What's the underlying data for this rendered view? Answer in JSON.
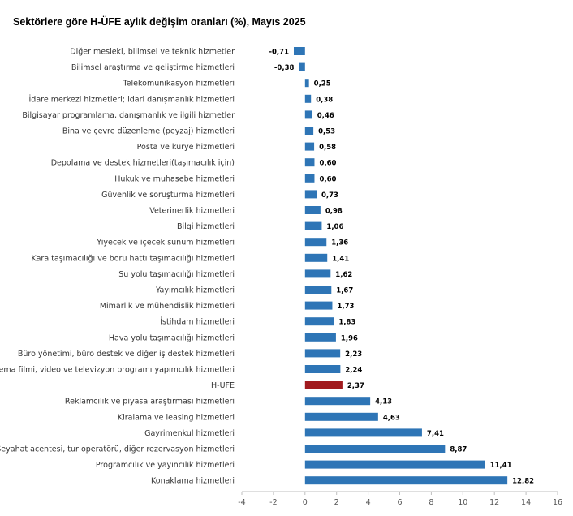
{
  "chart_data": {
    "type": "bar",
    "orientation": "horizontal",
    "title": "Sektörlere göre H-ÜFE aylık değişim oranları (%), Mayıs 2025",
    "categories": [
      "Diğer mesleki, bilimsel ve teknik hizmetler",
      "Bilimsel araştırma ve geliştirme hizmetleri",
      "Telekomünikasyon hizmetleri",
      "İdare merkezi hizmetleri; idari danışmanlık hizmetleri",
      "Bilgisayar programlama, danışmanlık ve ilgili hizmetler",
      "Bina ve çevre düzenleme (peyzaj) hizmetleri",
      "Posta ve kurye hizmetleri",
      "Depolama ve destek hizmetleri(taşımacılık için)",
      "Hukuk ve muhasebe hizmetleri",
      "Güvenlik ve soruşturma hizmetleri",
      "Veterinerlik hizmetleri",
      "Bilgi hizmetleri",
      "Yiyecek ve içecek sunum hizmetleri",
      "Kara taşımacılığı ve boru hattı taşımacılığı hizmetleri",
      "Su yolu taşımacılığı hizmetleri",
      "Yayımcılık hizmetleri",
      "Mimarlık ve mühendislik hizmetleri",
      "İstihdam hizmetleri",
      "Hava yolu taşımacılığı hizmetleri",
      "Büro yönetimi, büro destek ve diğer iş destek hizmetleri",
      "Sinema filmi, video ve televizyon programı yapımcılık hizmetleri",
      "H-ÜFE",
      "Reklamcılık ve piyasa araştırması hizmetleri",
      "Kiralama ve leasing hizmetleri",
      "Gayrimenkul hizmetleri",
      "Seyahat acentesi, tur operatörü, diğer rezervasyon hizmetleri",
      "Programcılık ve yayıncılık hizmetleri",
      "Konaklama hizmetleri"
    ],
    "values": [
      -0.71,
      -0.38,
      0.25,
      0.38,
      0.46,
      0.53,
      0.58,
      0.6,
      0.6,
      0.73,
      0.98,
      1.06,
      1.36,
      1.41,
      1.62,
      1.67,
      1.73,
      1.83,
      1.96,
      2.23,
      2.24,
      2.37,
      4.13,
      4.63,
      7.41,
      8.87,
      11.41,
      12.82
    ],
    "value_labels": [
      "-0,71",
      "-0,38",
      "0,25",
      "0,38",
      "0,46",
      "0,53",
      "0,58",
      "0,60",
      "0,60",
      "0,73",
      "0,98",
      "1,06",
      "1,36",
      "1,41",
      "1,62",
      "1,67",
      "1,73",
      "1,83",
      "1,96",
      "2,23",
      "2,24",
      "2,37",
      "4,13",
      "4,63",
      "7,41",
      "8,87",
      "11,41",
      "12,82"
    ],
    "highlight_category": "H-ÜFE",
    "xlim": [
      -4,
      16
    ],
    "xticks": [
      -4,
      -2,
      0,
      2,
      4,
      6,
      8,
      10,
      12,
      14,
      16
    ],
    "grid": false,
    "colors": {
      "bar": "#2e75b6",
      "highlight": "#a11a1e",
      "axis": "#bfbfbf"
    }
  }
}
